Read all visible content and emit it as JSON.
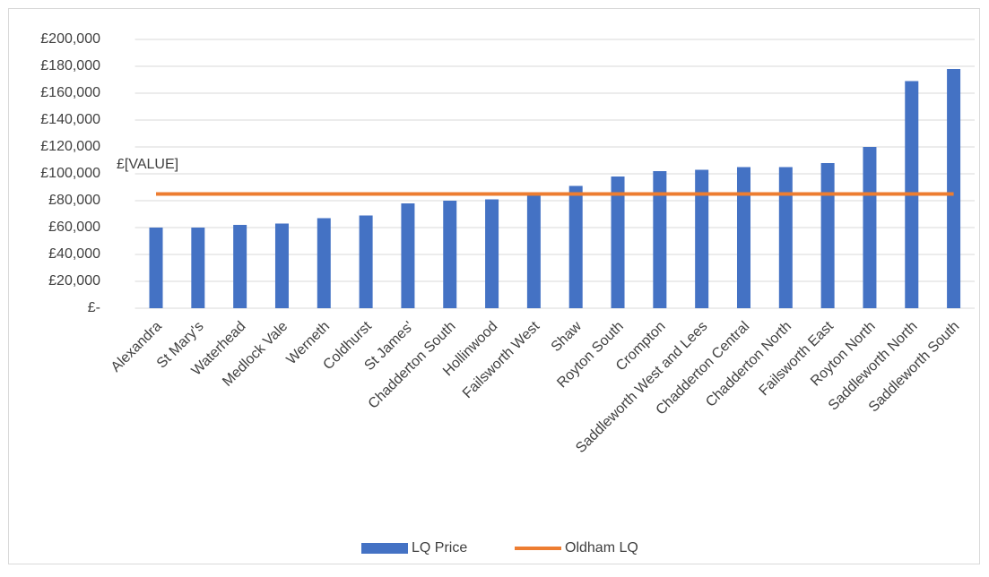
{
  "chart_data": {
    "type": "bar",
    "categories": [
      "Alexandra",
      "St Mary's",
      "Waterhead",
      "Medlock Vale",
      "Werneth",
      "Coldhurst",
      "St James'",
      "Chadderton South",
      "Hollinwood",
      "Failsworth West",
      "Shaw",
      "Royton South",
      "Crompton",
      "Saddleworth West and Lees",
      "Chadderton Central",
      "Chadderton North",
      "Failsworth East",
      "Royton North",
      "Saddleworth North",
      "Saddleworth South"
    ],
    "series": [
      {
        "name": "LQ Price",
        "type": "bar",
        "color": "#4472c4",
        "values": [
          60000,
          60000,
          62000,
          63000,
          67000,
          69000,
          78000,
          80000,
          81000,
          85000,
          91000,
          98000,
          102000,
          103000,
          105000,
          105000,
          108000,
          120000,
          169000,
          178000
        ]
      },
      {
        "name": "Oldham LQ",
        "type": "line",
        "color": "#ed7d31",
        "values": [
          85000,
          85000,
          85000,
          85000,
          85000,
          85000,
          85000,
          85000,
          85000,
          85000,
          85000,
          85000,
          85000,
          85000,
          85000,
          85000,
          85000,
          85000,
          85000,
          85000
        ]
      }
    ],
    "annotation": "£[VALUE]",
    "ylim": [
      0,
      200000
    ],
    "yticks": [
      {
        "value": 0,
        "label": "£-"
      },
      {
        "value": 20000,
        "label": "£20,000"
      },
      {
        "value": 40000,
        "label": "£40,000"
      },
      {
        "value": 60000,
        "label": "£60,000"
      },
      {
        "value": 80000,
        "label": "£80,000"
      },
      {
        "value": 100000,
        "label": "£100,000"
      },
      {
        "value": 120000,
        "label": "£120,000"
      },
      {
        "value": 140000,
        "label": "£140,000"
      },
      {
        "value": 160000,
        "label": "£160,000"
      },
      {
        "value": 180000,
        "label": "£180,000"
      },
      {
        "value": 200000,
        "label": "£200,000"
      }
    ],
    "grid": true,
    "legend": "bottom"
  }
}
